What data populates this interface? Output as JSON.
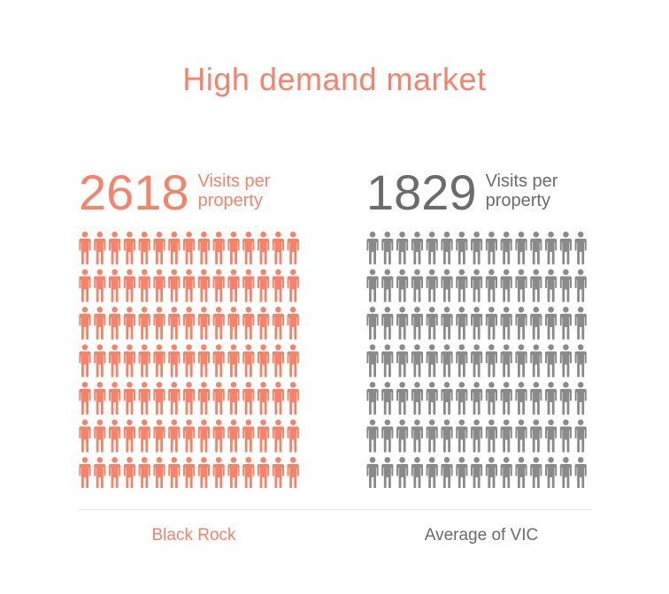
{
  "title": "High demand market",
  "colors": {
    "accent": "#f7826a",
    "neutral": "#8a8a8a",
    "label_neutral": "#6b6b6b",
    "divider": "#e6e6e6"
  },
  "chart_data": {
    "type": "pictogram",
    "title": "High demand market",
    "unit_label": "Visits per property",
    "icon": "person-icon",
    "series": [
      {
        "name": "Black Rock",
        "value": 2618,
        "value_text": "2618",
        "unit_text": "Visits per property",
        "color": "#f7826a"
      },
      {
        "name": "Average of VIC",
        "value": 1829,
        "value_text": "1829",
        "unit_text": "Visits per property",
        "color": "#8a8a8a"
      }
    ]
  }
}
